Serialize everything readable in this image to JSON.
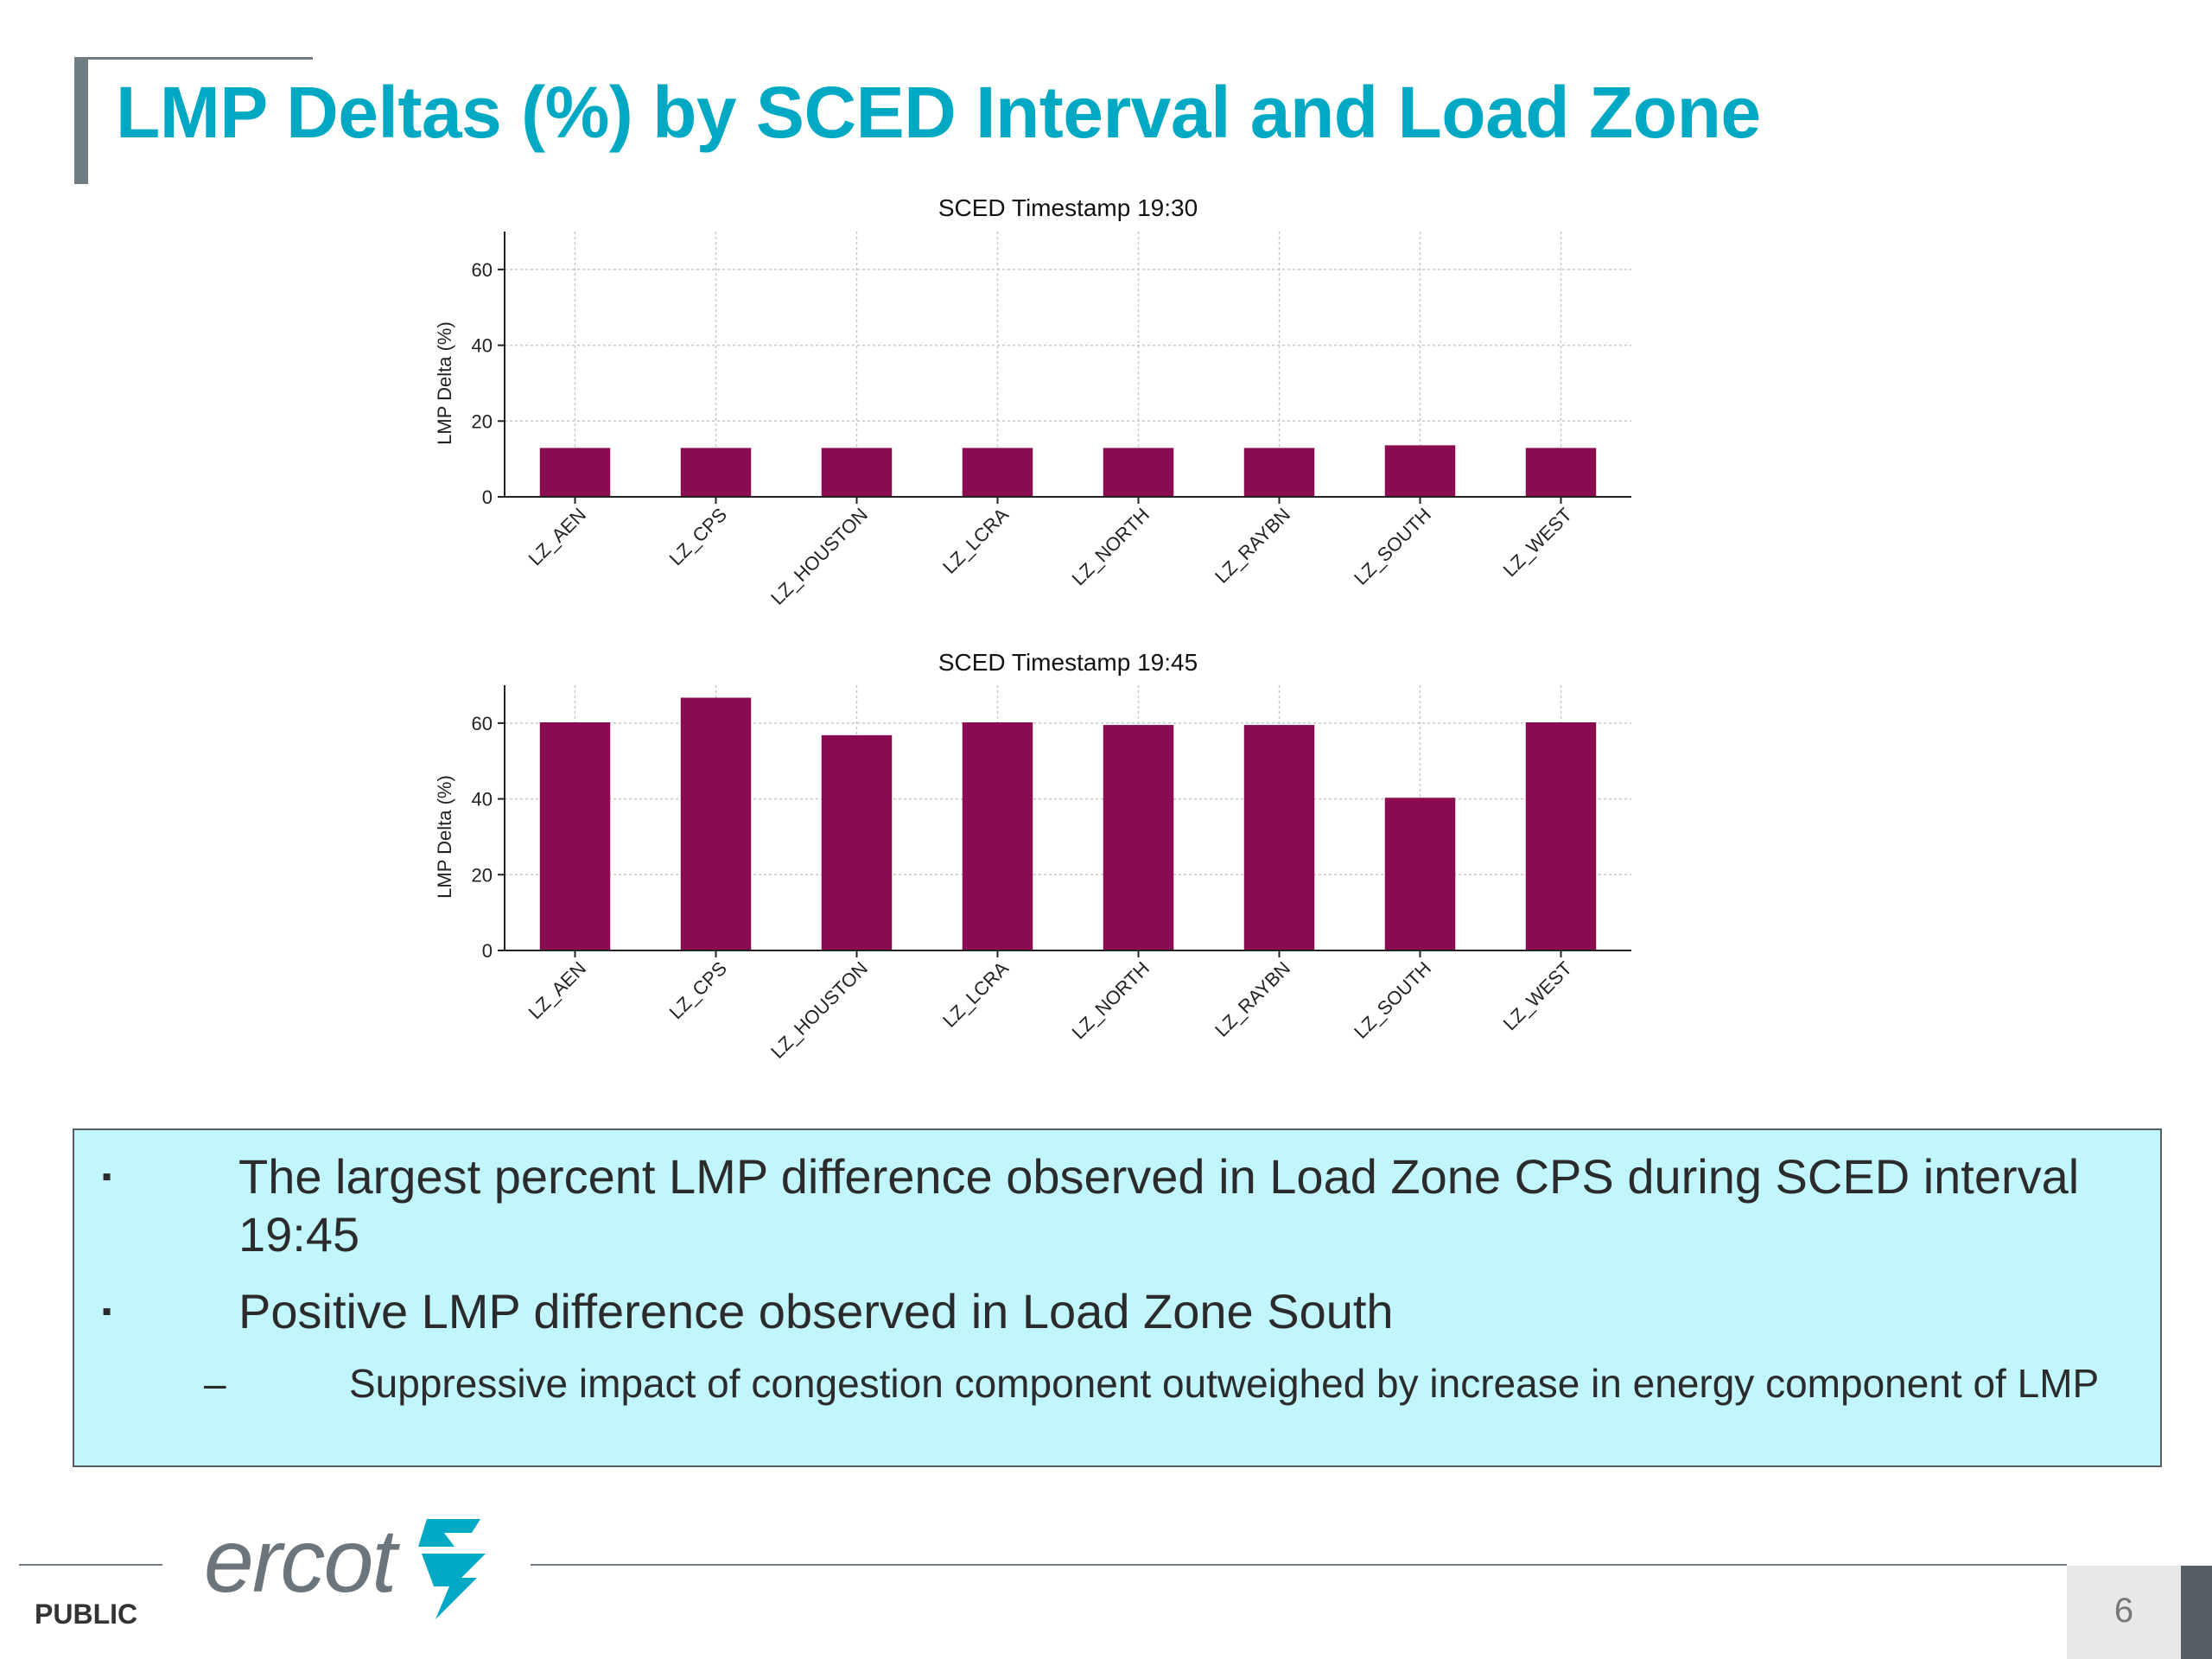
{
  "slide": {
    "title": "LMP Deltas (%) by SCED Interval and Load Zone",
    "footer_label": "PUBLIC",
    "logo_text": "ercot",
    "page_number": "6"
  },
  "notes": {
    "marker": "▪",
    "sub_marker": "–",
    "items": [
      {
        "text": "The largest percent LMP difference observed in Load Zone CPS during SCED interval 19:45"
      },
      {
        "text": "Positive LMP difference observed in Load Zone South"
      },
      {
        "text": "Suppressive impact of congestion component outweighed by increase in energy component of LMP"
      }
    ]
  },
  "colors": {
    "bar": "#8a0b52",
    "title": "#00a9c3",
    "note_bg": "#c2f6fe",
    "accent_gray": "#707b82"
  },
  "chart_data": [
    {
      "type": "bar",
      "title": "SCED Timestamp 19:30",
      "ylabel": "LMP Delta (%)",
      "xlabel": "",
      "categories": [
        "LZ_AEN",
        "LZ_CPS",
        "LZ_HOUSTON",
        "LZ_LCRA",
        "LZ_NORTH",
        "LZ_RAYBN",
        "LZ_SOUTH",
        "LZ_WEST"
      ],
      "values": [
        12.9,
        12.9,
        12.9,
        12.9,
        12.9,
        12.9,
        13.6,
        12.9
      ],
      "ylim": [
        0,
        70
      ],
      "yticks": [
        0,
        20,
        40,
        60
      ],
      "grid": true
    },
    {
      "type": "bar",
      "title": "SCED Timestamp 19:45",
      "ylabel": "LMP Delta (%)",
      "xlabel": "",
      "categories": [
        "LZ_AEN",
        "LZ_CPS",
        "LZ_HOUSTON",
        "LZ_LCRA",
        "LZ_NORTH",
        "LZ_RAYBN",
        "LZ_SOUTH",
        "LZ_WEST"
      ],
      "values": [
        60.2,
        66.7,
        56.8,
        60.2,
        59.5,
        59.5,
        40.3,
        60.2
      ],
      "ylim": [
        0,
        70
      ],
      "yticks": [
        0,
        20,
        40,
        60
      ],
      "grid": true
    }
  ]
}
